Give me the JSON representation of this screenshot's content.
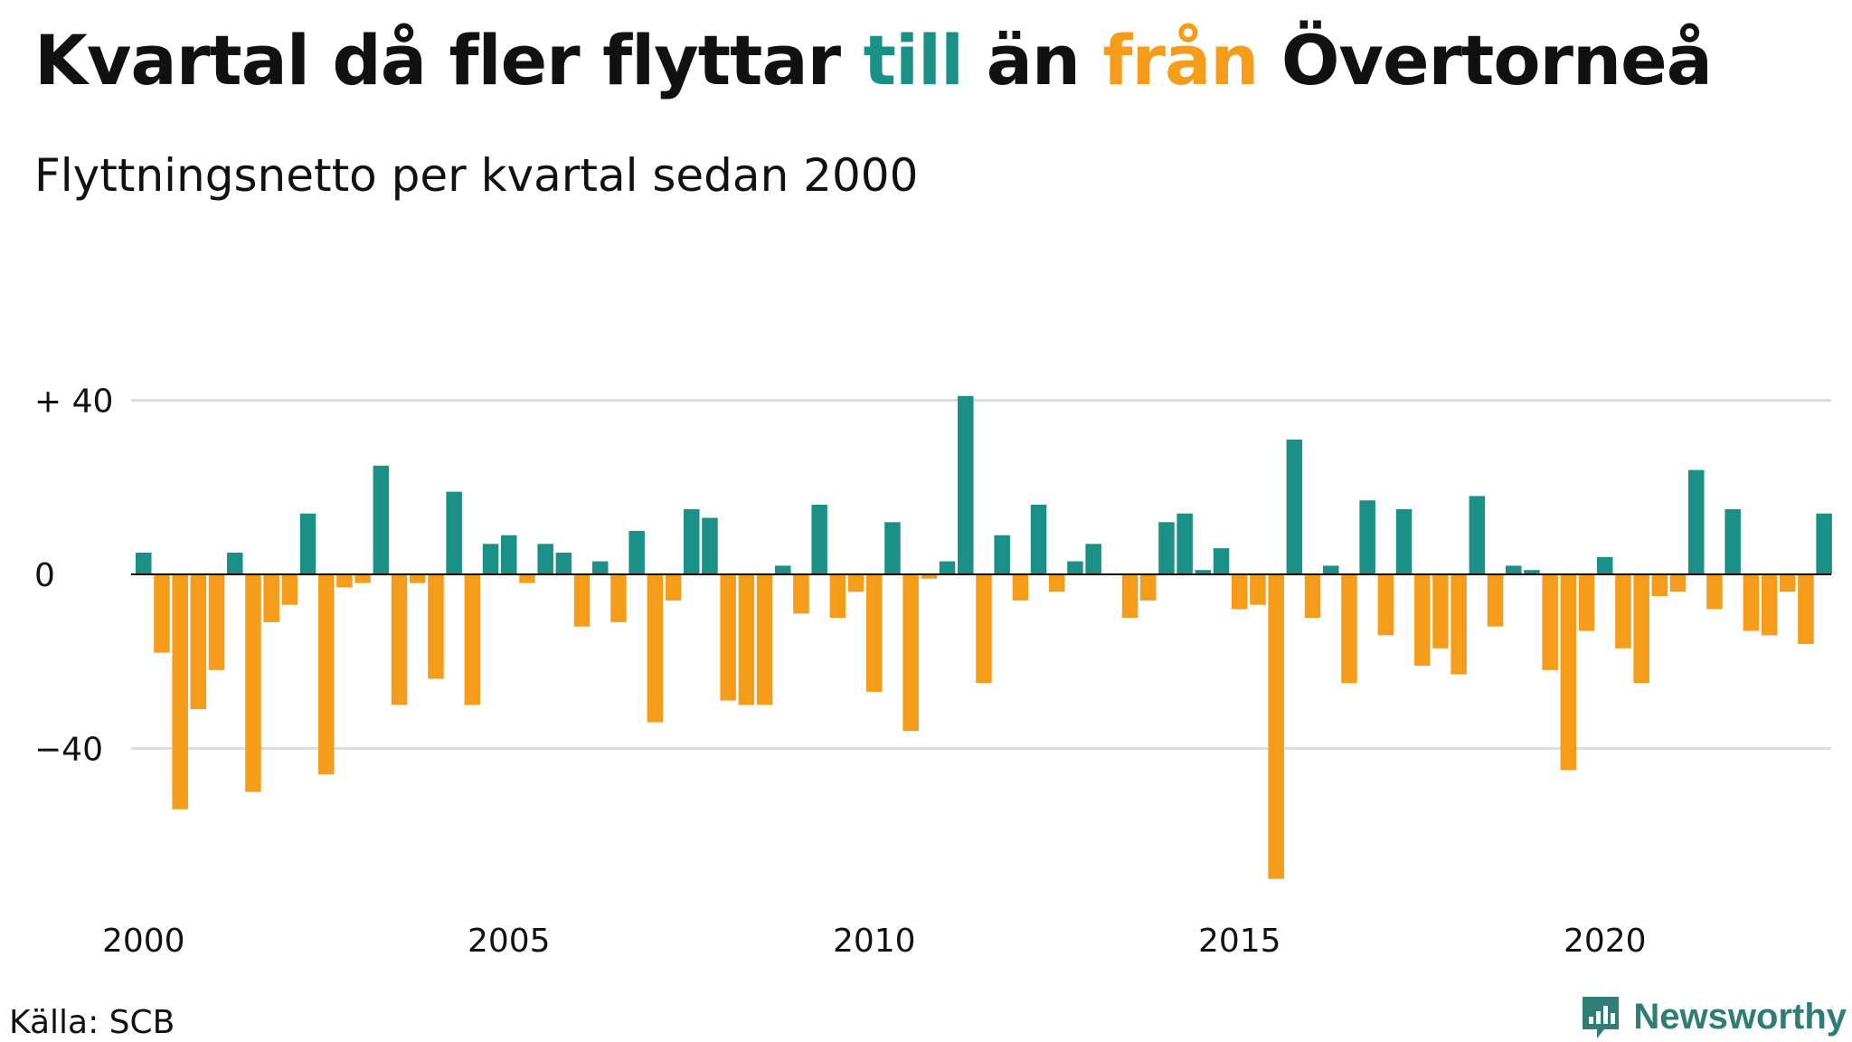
{
  "title": {
    "part1": "Kvartal då fler flyttar ",
    "word_in": "till",
    "part2": " än ",
    "word_out": "från",
    "part3": " Övertorneå"
  },
  "subtitle": "Flyttningsnetto per kvartal sedan 2000",
  "source": "Källa: SCB",
  "brand": {
    "name": "Newsworthy",
    "icon": "newsworthy-logo-icon"
  },
  "colors": {
    "positive": "#1a9086",
    "negative": "#f59c1a",
    "grid": "#dcdcdc",
    "baseline": "#000000",
    "text": "#111111"
  },
  "chart_data": {
    "type": "bar",
    "x_start": "2000 Q1",
    "x_ticks": [
      {
        "label": "2000",
        "x": 2000
      },
      {
        "label": "2005",
        "x": 2005
      },
      {
        "label": "2010",
        "x": 2010
      },
      {
        "label": "2015",
        "x": 2015
      },
      {
        "label": "2020",
        "x": 2020
      }
    ],
    "y_ticks": [
      {
        "label": "+ 40",
        "value": 40
      },
      {
        "label": "0",
        "value": 0
      },
      {
        "label": "−40",
        "value": -40
      }
    ],
    "ylim": [
      -80,
      40
    ],
    "grid": true,
    "values": [
      5,
      -18,
      -54,
      -31,
      -22,
      5,
      -50,
      -11,
      -7,
      14,
      -46,
      -3,
      -2,
      25,
      -30,
      -2,
      -24,
      19,
      -30,
      7,
      9,
      -2,
      7,
      5,
      -12,
      3,
      -11,
      10,
      -34,
      -6,
      15,
      13,
      -29,
      -30,
      -30,
      2,
      -9,
      16,
      -10,
      -4,
      -27,
      12,
      -36,
      -1,
      3,
      41,
      -25,
      9,
      -6,
      16,
      -4,
      3,
      7,
      0,
      -10,
      -6,
      12,
      14,
      1,
      6,
      -8,
      -7,
      -70,
      31,
      -10,
      2,
      -25,
      17,
      -14,
      15,
      -21,
      -17,
      -23,
      18,
      -12,
      2,
      1,
      -22,
      -45,
      -13,
      4,
      -17,
      -25,
      -5,
      -4,
      24,
      -8,
      15,
      -13,
      -14,
      -4,
      -16,
      14
    ]
  }
}
